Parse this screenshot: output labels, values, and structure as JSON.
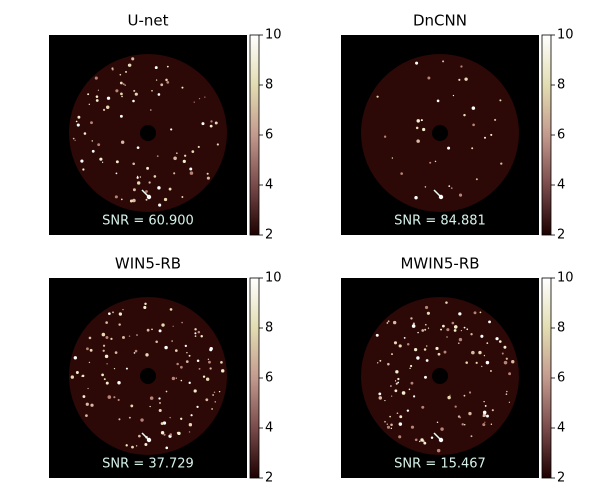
{
  "chart_data": [
    {
      "type": "image",
      "title": "U-net",
      "annotation": "SNR = 60.900",
      "ylim": [
        2,
        10
      ],
      "yticks": [
        2,
        4,
        6,
        8,
        10
      ]
    },
    {
      "type": "image",
      "title": "DnCNN",
      "annotation": "SNR = 84.881",
      "ylim": [
        2,
        10
      ],
      "yticks": [
        2,
        4,
        6,
        8,
        10
      ]
    },
    {
      "type": "image",
      "title": "WIN5-RB",
      "annotation": "SNR = 37.729",
      "ylim": [
        2,
        10
      ],
      "yticks": [
        2,
        4,
        6,
        8,
        10
      ]
    },
    {
      "type": "image",
      "title": "MWIN5-RB",
      "annotation": "SNR = 15.467",
      "ylim": [
        2,
        10
      ],
      "yticks": [
        2,
        4,
        6,
        8,
        10
      ]
    }
  ]
}
